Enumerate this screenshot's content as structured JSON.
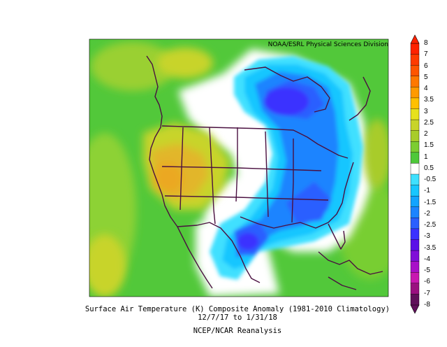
{
  "map": {
    "credit": "NOAA/ESRL Physical Sciences Division",
    "title": "Surface Air Temperature (K) Composite Anomaly (1981-2010 Climatology)",
    "dates": "12/7/17   to 1/31/18",
    "source": "NCEP/NCAR Reanalysis"
  },
  "colorbar": {
    "labels": [
      "8",
      "7",
      "6",
      "5",
      "4",
      "3.5",
      "3",
      "2.5",
      "2",
      "1.5",
      "1",
      "0.5",
      "-0.5",
      "-1",
      "-1.5",
      "-2",
      "-2.5",
      "-3",
      "-3.5",
      "-4",
      "-5",
      "-6",
      "-7",
      "-8"
    ],
    "colors": [
      "#ff2200",
      "#ff3b00",
      "#ff5500",
      "#ff7800",
      "#ff9a00",
      "#ffc000",
      "#e7e11b",
      "#c8d42a",
      "#a8cc2a",
      "#7ccd31",
      "#4ec839",
      "#ffffff",
      "#3fe0ff",
      "#17c6ff",
      "#12a4ff",
      "#1c84ff",
      "#2a5fff",
      "#3a32ff",
      "#5a10e8",
      "#8010d8",
      "#a810c8",
      "#c818b0",
      "#9a1080",
      "#60105a"
    ]
  },
  "legend_colors": {
    "warm": "#e2b62a",
    "neutral_green": "#52c83a",
    "cold": "#2c5cff",
    "strong_cold": "#3028d8"
  }
}
